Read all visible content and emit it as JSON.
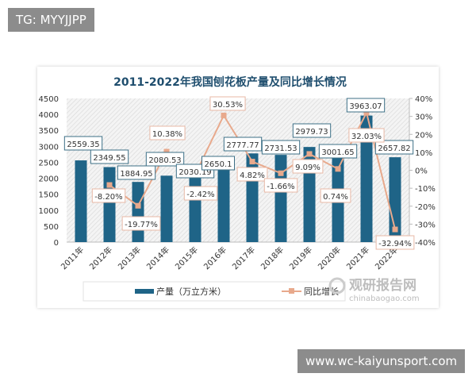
{
  "watermarks": {
    "top_left": "TG: MYYJJPP",
    "bottom_right": "www.wc-kaiyunsport.com"
  },
  "source_logo": {
    "name": "观研报告网",
    "url_text": "chinabaogao.com"
  },
  "colors": {
    "bar": "#1f6487",
    "line": "#e8a98c",
    "title": "#1f4e6e"
  },
  "chart_data": {
    "type": "bar+line",
    "title": "2011-2022年我国刨花板产量及同比增长情况",
    "categories": [
      "2011年",
      "2012年",
      "2013年",
      "2014年",
      "2015年",
      "2016年",
      "2017年",
      "2018年",
      "2019年",
      "2020年",
      "2021年",
      "2022年"
    ],
    "series": [
      {
        "name": "产量（万立方米）",
        "type": "bar",
        "axis": "left",
        "values": [
          2559.35,
          2349.55,
          1884.95,
          2080.53,
          2030.19,
          2650.1,
          2777.77,
          2731.53,
          2979.73,
          3001.65,
          3963.07,
          2657.82
        ],
        "labels": [
          "2559.35",
          "2349.55",
          "1884.95",
          "2080.53",
          "2030.19",
          "2650.1",
          "2777.77",
          "2731.53",
          "2979.73",
          "3001.65",
          "3963.07",
          "2657.82"
        ]
      },
      {
        "name": "同比增长",
        "type": "line",
        "axis": "right",
        "values": [
          null,
          -8.2,
          -19.77,
          10.38,
          -2.42,
          30.53,
          4.82,
          -1.66,
          9.09,
          0.74,
          32.03,
          -32.94
        ],
        "labels": [
          "",
          "-8.20%",
          "-19.77%",
          "10.38%",
          "-2.42%",
          "30.53%",
          "4.82%",
          "-1.66%",
          "9.09%",
          "0.74%",
          "32.03%",
          "-32.94%"
        ]
      }
    ],
    "y_left": {
      "range": [
        0,
        4500
      ],
      "ticks": [
        "0",
        "500",
        "1000",
        "1500",
        "2000",
        "2500",
        "3000",
        "3500",
        "4000",
        "4500"
      ]
    },
    "y_right": {
      "range": [
        -40,
        40
      ],
      "ticks": [
        "-40%",
        "-30%",
        "-20%",
        "-10%",
        "0%",
        "10%",
        "20%",
        "30%",
        "40%"
      ]
    },
    "legend": "bottom",
    "grid": false
  }
}
